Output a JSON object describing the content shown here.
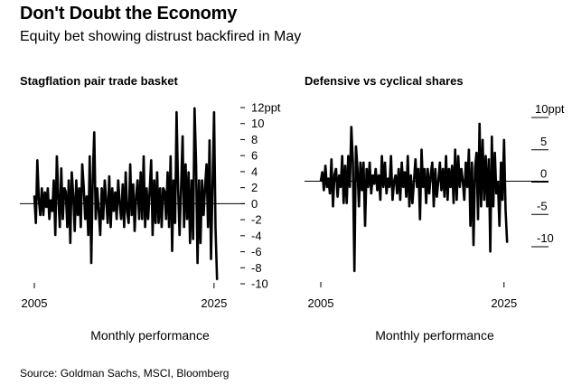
{
  "header": {
    "title": "Don't Doubt the Economy",
    "subtitle": "Equity bet showing distrust backfired in May"
  },
  "source": "Source: Goldman Sachs, MSCI, Bloomberg",
  "chart_data": [
    {
      "type": "line",
      "title": "Stagflation pair trade basket",
      "xlabel": "Monthly performance",
      "ylabel": "",
      "x_tick_labels": [
        "2005",
        "2025"
      ],
      "xlim": [
        "2005",
        "2025"
      ],
      "ylim": [
        -10,
        12
      ],
      "y_ticks": [
        {
          "value": 12,
          "label": "12ppt"
        },
        {
          "value": 10,
          "label": "10"
        },
        {
          "value": 8,
          "label": "8"
        },
        {
          "value": 6,
          "label": "6"
        },
        {
          "value": 4,
          "label": "4"
        },
        {
          "value": 2,
          "label": "2"
        },
        {
          "value": 0,
          "label": "0"
        },
        {
          "value": -2,
          "label": "-2"
        },
        {
          "value": -4,
          "label": "-4"
        },
        {
          "value": -6,
          "label": "-6"
        },
        {
          "value": -8,
          "label": "-8"
        },
        {
          "value": -10,
          "label": "-10"
        }
      ],
      "zero_line": true,
      "series": [
        {
          "color": "#000000",
          "x": [
            "2005-01",
            "2005-03",
            "2005-05",
            "2005-07",
            "2005-09",
            "2005-11",
            "2006-01",
            "2006-03",
            "2006-05",
            "2006-07",
            "2006-09",
            "2006-11",
            "2007-01",
            "2007-03",
            "2007-05",
            "2007-07",
            "2007-09",
            "2007-11",
            "2008-01",
            "2008-03",
            "2008-05",
            "2008-07",
            "2008-09",
            "2008-11",
            "2009-01",
            "2009-03",
            "2009-05",
            "2009-07",
            "2009-09",
            "2009-11",
            "2010-01",
            "2010-03",
            "2010-05",
            "2010-07",
            "2010-09",
            "2010-11",
            "2011-01",
            "2011-03",
            "2011-05",
            "2011-07",
            "2011-09",
            "2011-11",
            "2012-01",
            "2012-03",
            "2012-05",
            "2012-07",
            "2012-09",
            "2012-11",
            "2013-01",
            "2013-03",
            "2013-05",
            "2013-07",
            "2013-09",
            "2013-11",
            "2014-01",
            "2014-03",
            "2014-05",
            "2014-07",
            "2014-09",
            "2014-11",
            "2015-01",
            "2015-03",
            "2015-05",
            "2015-07",
            "2015-09",
            "2015-11",
            "2016-01",
            "2016-03",
            "2016-05",
            "2016-07",
            "2016-09",
            "2016-11",
            "2017-01",
            "2017-03",
            "2017-05",
            "2017-07",
            "2017-09",
            "2017-11",
            "2018-01",
            "2018-03",
            "2018-05",
            "2018-07",
            "2018-09",
            "2018-11",
            "2019-01",
            "2019-03",
            "2019-05",
            "2019-07",
            "2019-09",
            "2019-11",
            "2020-01",
            "2020-03",
            "2020-05",
            "2020-07",
            "2020-09",
            "2020-11",
            "2021-01",
            "2021-03",
            "2021-05",
            "2021-07",
            "2021-09",
            "2021-11",
            "2022-01",
            "2022-03",
            "2022-05",
            "2022-07",
            "2022-09",
            "2022-11",
            "2023-01",
            "2023-03",
            "2023-05",
            "2023-07",
            "2023-09",
            "2023-11",
            "2024-01",
            "2024-03",
            "2024-05",
            "2024-07",
            "2024-09",
            "2024-11",
            "2025-01",
            "2025-03",
            "2025-05"
          ],
          "values": [
            1,
            -2.5,
            5.5,
            0.5,
            -1.5,
            2,
            -1.5,
            1.5,
            -0.5,
            2,
            -2,
            0.5,
            -1,
            3,
            -4,
            6,
            1,
            -3,
            4.5,
            -2,
            2,
            1.5,
            -3,
            3,
            -5,
            4,
            1,
            -3.5,
            3,
            -1.5,
            2,
            -3,
            5,
            2,
            -2,
            1,
            -4,
            6,
            -7.5,
            3,
            9,
            -2,
            2,
            -1,
            -4,
            2,
            -2,
            3,
            0.5,
            -2.5,
            3.5,
            -3,
            2,
            -1,
            1.5,
            -2,
            3,
            0,
            -2,
            2.5,
            -3,
            4,
            -1,
            -2.5,
            5,
            -1.5,
            2.5,
            -3.5,
            1,
            3,
            -2,
            4,
            -2,
            6,
            -3,
            2,
            -2,
            1.5,
            5.5,
            -4,
            3,
            -2.5,
            4,
            -2.5,
            2,
            -3,
            2,
            1.5,
            -2,
            4,
            -3,
            6,
            -6,
            3,
            -2.5,
            11.5,
            2,
            -4,
            2,
            8.5,
            -3,
            5,
            -2,
            4,
            -5,
            3,
            -4.5,
            12,
            5,
            -7.5,
            3,
            -5,
            3,
            -1.5,
            2,
            5,
            -3,
            8,
            -7,
            2,
            11.5,
            -3,
            -9.5
          ]
        }
      ]
    },
    {
      "type": "line",
      "title": "Defensive vs cyclical shares",
      "xlabel": "Monthly performance",
      "ylabel": "",
      "x_tick_labels": [
        "2005",
        "2025"
      ],
      "xlim": [
        "2005",
        "2025"
      ],
      "ylim": [
        -10,
        10
      ],
      "y_ticks": [
        {
          "value": 10,
          "label": "10ppt"
        },
        {
          "value": 5,
          "label": "5"
        },
        {
          "value": 0,
          "label": "0"
        },
        {
          "value": -5,
          "label": "-5"
        },
        {
          "value": -10,
          "label": "-10"
        }
      ],
      "zero_line": true,
      "series": [
        {
          "color": "#000000",
          "x": [
            "2005-01",
            "2005-03",
            "2005-05",
            "2005-07",
            "2005-09",
            "2005-11",
            "2006-01",
            "2006-03",
            "2006-05",
            "2006-07",
            "2006-09",
            "2006-11",
            "2007-01",
            "2007-03",
            "2007-05",
            "2007-07",
            "2007-09",
            "2007-11",
            "2008-01",
            "2008-03",
            "2008-05",
            "2008-07",
            "2008-09",
            "2008-11",
            "2009-01",
            "2009-03",
            "2009-05",
            "2009-07",
            "2009-09",
            "2009-11",
            "2010-01",
            "2010-03",
            "2010-05",
            "2010-07",
            "2010-09",
            "2010-11",
            "2011-01",
            "2011-03",
            "2011-05",
            "2011-07",
            "2011-09",
            "2011-11",
            "2012-01",
            "2012-03",
            "2012-05",
            "2012-07",
            "2012-09",
            "2012-11",
            "2013-01",
            "2013-03",
            "2013-05",
            "2013-07",
            "2013-09",
            "2013-11",
            "2014-01",
            "2014-03",
            "2014-05",
            "2014-07",
            "2014-09",
            "2014-11",
            "2015-01",
            "2015-03",
            "2015-05",
            "2015-07",
            "2015-09",
            "2015-11",
            "2016-01",
            "2016-03",
            "2016-05",
            "2016-07",
            "2016-09",
            "2016-11",
            "2017-01",
            "2017-03",
            "2017-05",
            "2017-07",
            "2017-09",
            "2017-11",
            "2018-01",
            "2018-03",
            "2018-05",
            "2018-07",
            "2018-09",
            "2018-11",
            "2019-01",
            "2019-03",
            "2019-05",
            "2019-07",
            "2019-09",
            "2019-11",
            "2020-01",
            "2020-03",
            "2020-05",
            "2020-07",
            "2020-09",
            "2020-11",
            "2021-01",
            "2021-03",
            "2021-05",
            "2021-07",
            "2021-09",
            "2021-11",
            "2022-01",
            "2022-03",
            "2022-05",
            "2022-07",
            "2022-09",
            "2022-11",
            "2023-01",
            "2023-03",
            "2023-05",
            "2023-07",
            "2023-09",
            "2023-11",
            "2024-01",
            "2024-03",
            "2024-05",
            "2024-07",
            "2024-09",
            "2024-11",
            "2025-01",
            "2025-03",
            "2025-05"
          ],
          "values": [
            0,
            1.5,
            -1.5,
            2.5,
            -1,
            0.5,
            -2,
            3.5,
            -4,
            1,
            2,
            -2.5,
            1,
            -1,
            4,
            -3.5,
            2.5,
            -3.5,
            4,
            -1,
            8.5,
            3,
            -14,
            5.5,
            2,
            -4,
            3,
            -1.5,
            3,
            -7,
            2,
            -1,
            3,
            -2,
            1,
            -0.5,
            2,
            -1.5,
            1,
            -3,
            4,
            -1,
            3,
            -2,
            0.5,
            -1,
            4,
            -3,
            0,
            1,
            -2,
            2,
            -3,
            3,
            -1,
            1.5,
            -2.5,
            4,
            -4,
            1,
            -3.5,
            0,
            3.5,
            -1,
            2,
            -6,
            5,
            -1,
            2,
            -3.5,
            2,
            -2,
            1,
            3,
            -4,
            2,
            -2.5,
            0,
            3,
            -1.5,
            2,
            -2.5,
            4,
            -3,
            2,
            -1,
            2.5,
            -3.5,
            5,
            -3,
            4,
            -1,
            2,
            0,
            -3,
            3,
            -1,
            5,
            -7,
            3,
            -10,
            2,
            4.5,
            -6,
            9,
            -4,
            6.5,
            -3,
            4,
            -4,
            3.5,
            -11,
            7,
            -4,
            4.5,
            -2,
            0,
            -7,
            3,
            -3,
            6.5,
            -4.5,
            -9.5
          ]
        }
      ]
    }
  ]
}
